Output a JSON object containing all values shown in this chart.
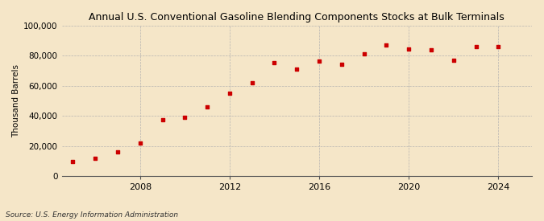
{
  "title": "Annual U.S. Conventional Gasoline Blending Components Stocks at Bulk Terminals",
  "ylabel": "Thousand Barrels",
  "source": "Source: U.S. Energy Information Administration",
  "background_color": "#f5e6c8",
  "marker_color": "#cc0000",
  "grid_color": "#b0b0b0",
  "ylim": [
    0,
    100000
  ],
  "yticks": [
    0,
    20000,
    40000,
    60000,
    80000,
    100000
  ],
  "ytick_labels": [
    "0",
    "20,000",
    "40,000",
    "60,000",
    "80,000",
    "100,000"
  ],
  "xticks": [
    2008,
    2012,
    2016,
    2020,
    2024
  ],
  "xlim": [
    2004.5,
    2025.5
  ],
  "years": [
    2005,
    2006,
    2007,
    2008,
    2009,
    2010,
    2011,
    2012,
    2013,
    2014,
    2015,
    2016,
    2017,
    2018,
    2019,
    2020,
    2021,
    2022,
    2023,
    2024
  ],
  "values": [
    9500,
    12000,
    16000,
    22000,
    37500,
    39000,
    46000,
    55000,
    62000,
    75500,
    71000,
    76500,
    74500,
    81000,
    87000,
    84500,
    84000,
    77000,
    86000,
    86000
  ]
}
